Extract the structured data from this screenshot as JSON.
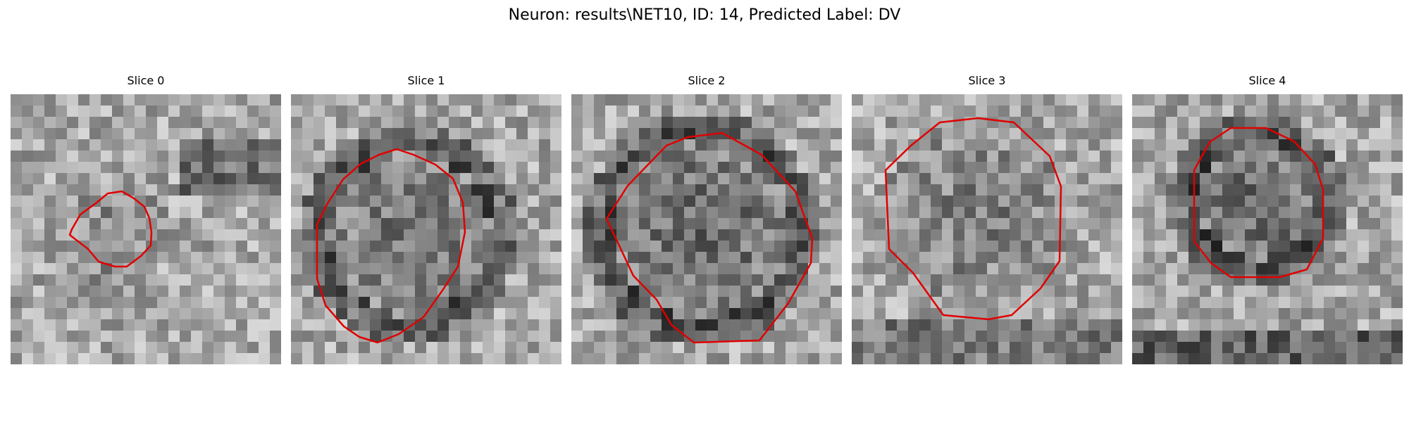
{
  "figure": {
    "title": "Neuron: results\\NET10, ID: 14, Predicted Label: DV"
  },
  "overlay_color": "#e00000",
  "panels": [
    {
      "title": "Slice 0"
    },
    {
      "title": "Slice 1"
    },
    {
      "title": "Slice 2"
    },
    {
      "title": "Slice 3"
    },
    {
      "title": "Slice 4"
    }
  ]
}
